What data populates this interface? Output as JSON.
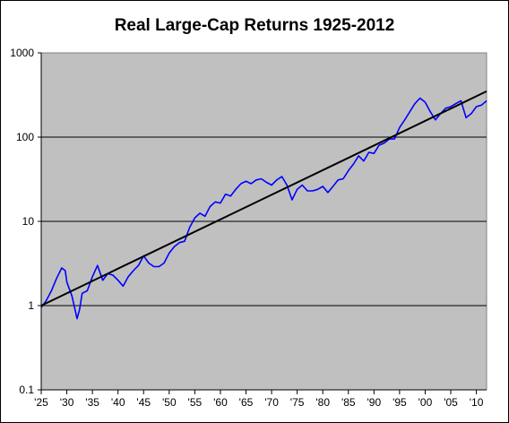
{
  "chart_data": {
    "type": "line",
    "title": "Real Large-Cap Returns 1925-2012",
    "xlabel": "",
    "ylabel": "",
    "y_scale": "log",
    "ylim": [
      0.1,
      1000
    ],
    "xlim": [
      1925,
      2012
    ],
    "y_ticks": [
      {
        "value": 0.1,
        "label": "0.1"
      },
      {
        "value": 1,
        "label": "1"
      },
      {
        "value": 10,
        "label": "10"
      },
      {
        "value": 100,
        "label": "100"
      },
      {
        "value": 1000,
        "label": "1000"
      }
    ],
    "x_ticks": [
      {
        "value": 1925,
        "label": "'25"
      },
      {
        "value": 1930,
        "label": "'30"
      },
      {
        "value": 1935,
        "label": "'35"
      },
      {
        "value": 1940,
        "label": "'40"
      },
      {
        "value": 1945,
        "label": "'45"
      },
      {
        "value": 1950,
        "label": "'50"
      },
      {
        "value": 1955,
        "label": "'55"
      },
      {
        "value": 1960,
        "label": "'60"
      },
      {
        "value": 1965,
        "label": "'65"
      },
      {
        "value": 1970,
        "label": "'70"
      },
      {
        "value": 1975,
        "label": "'75"
      },
      {
        "value": 1980,
        "label": "'80"
      },
      {
        "value": 1985,
        "label": "'85"
      },
      {
        "value": 1990,
        "label": "'90"
      },
      {
        "value": 1995,
        "label": "'95"
      },
      {
        "value": 2000,
        "label": "'00"
      },
      {
        "value": 2005,
        "label": "'05"
      },
      {
        "value": 2010,
        "label": "'10"
      }
    ],
    "grid": "horizontal major lines",
    "legend": "none",
    "colors": {
      "plot_area": "#c0c0c0",
      "returns": "#0000ff",
      "trend": "#000000"
    },
    "series": [
      {
        "style": "returns",
        "x": [
          1925,
          1926,
          1927,
          1928,
          1929,
          1929.7,
          1930,
          1931,
          1932,
          1932.5,
          1933,
          1934,
          1935,
          1936,
          1937,
          1938,
          1939,
          1940,
          1941,
          1942,
          1943,
          1944,
          1945,
          1946,
          1947,
          1948,
          1949,
          1950,
          1951,
          1952,
          1953,
          1954,
          1955,
          1956,
          1957,
          1958,
          1959,
          1960,
          1961,
          1962,
          1963,
          1964,
          1965,
          1966,
          1967,
          1968,
          1969,
          1970,
          1971,
          1972,
          1973,
          1974,
          1975,
          1976,
          1977,
          1978,
          1979,
          1980,
          1981,
          1982,
          1983,
          1984,
          1985,
          1986,
          1987,
          1988,
          1989,
          1990,
          1991,
          1992,
          1993,
          1994,
          1995,
          1996,
          1997,
          1998,
          1999,
          2000,
          2001,
          2002,
          2003,
          2004,
          2005,
          2006,
          2007,
          2008,
          2009,
          2010,
          2011,
          2012
        ],
        "y": [
          0.95,
          1.15,
          1.5,
          2.1,
          2.8,
          2.6,
          1.9,
          1.3,
          0.7,
          0.9,
          1.4,
          1.5,
          2.2,
          3.0,
          2.0,
          2.4,
          2.3,
          2.0,
          1.7,
          2.2,
          2.6,
          3.0,
          3.9,
          3.2,
          2.9,
          2.9,
          3.2,
          4.2,
          5.0,
          5.6,
          5.8,
          8.5,
          11.0,
          12.5,
          11.5,
          15.0,
          17.0,
          16.5,
          21.0,
          20.0,
          24.0,
          28.0,
          30.0,
          28.0,
          31.0,
          32.0,
          29.0,
          27.0,
          31.0,
          34.0,
          27.0,
          18.0,
          24.0,
          27.0,
          23.0,
          23.0,
          24.0,
          26.0,
          22.0,
          26.0,
          31.0,
          32.0,
          40.0,
          48.0,
          60.0,
          52.0,
          66.0,
          64.0,
          80.0,
          85.0,
          95.0,
          95.0,
          130.0,
          160.0,
          200.0,
          250.0,
          290.0,
          260.0,
          200.0,
          160.0,
          190.0,
          220.0,
          230.0,
          250.0,
          270.0,
          170.0,
          190.0,
          230.0,
          240.0,
          270.0
        ]
      },
      {
        "style": "trend",
        "x": [
          1925,
          2012
        ],
        "y": [
          1.0,
          350.0
        ]
      }
    ]
  }
}
